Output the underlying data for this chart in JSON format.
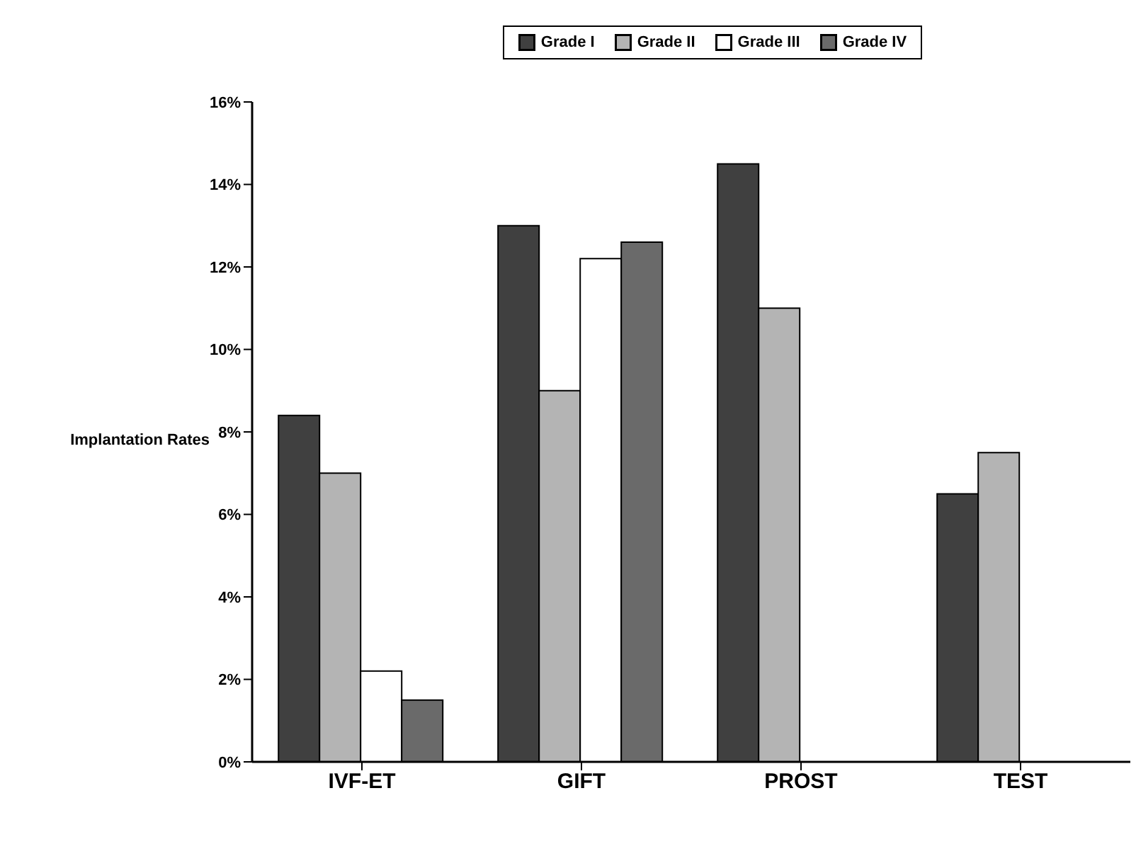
{
  "chart_data": {
    "type": "bar",
    "ylabel": "Implantation Rates",
    "categories": [
      "IVF-ET",
      "GIFT",
      "PROST",
      "TEST"
    ],
    "series": [
      {
        "name": "Grade I",
        "color": "#404040",
        "values": [
          8.4,
          13.0,
          14.5,
          6.5
        ]
      },
      {
        "name": "Grade II",
        "color": "#b4b4b4",
        "values": [
          7.0,
          9.0,
          11.0,
          7.5
        ]
      },
      {
        "name": "Grade III",
        "color": "#ffffff",
        "values": [
          2.2,
          12.2,
          null,
          null
        ]
      },
      {
        "name": "Grade IV",
        "color": "#6a6a6a",
        "values": [
          1.5,
          12.6,
          null,
          null
        ]
      }
    ],
    "ylim": [
      0,
      16
    ],
    "yticks": [
      {
        "value": 0,
        "label": "0%"
      },
      {
        "value": 2,
        "label": "2%"
      },
      {
        "value": 4,
        "label": "4%"
      },
      {
        "value": 6,
        "label": "6%"
      },
      {
        "value": 8,
        "label": "8%"
      },
      {
        "value": 10,
        "label": "10%"
      },
      {
        "value": 12,
        "label": "12%"
      },
      {
        "value": 14,
        "label": "14%"
      },
      {
        "value": 16,
        "label": "16%"
      }
    ],
    "grid": false,
    "legend": "top"
  }
}
